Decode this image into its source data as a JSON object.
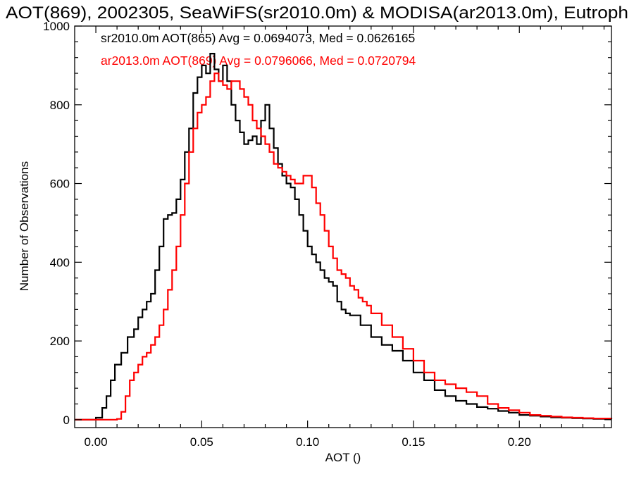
{
  "chart_data": {
    "type": "line",
    "title": "AOT(869), 2002305, SeaWiFS(sr2010.0m) & MODISA(ar2013.0m), Eutroph",
    "xlabel": "AOT ()",
    "ylabel": "Number of Observations",
    "xlim": [
      -0.01,
      0.2435
    ],
    "ylim": [
      -20,
      1000
    ],
    "grid": false,
    "x_ticks": [
      0.0,
      0.05,
      0.1,
      0.15,
      0.2
    ],
    "x_tick_labels": [
      "0.00",
      "0.05",
      "0.10",
      "0.15",
      "0.20"
    ],
    "y_ticks": [
      0,
      200,
      400,
      600,
      800,
      1000
    ],
    "y_tick_labels": [
      "0",
      "200",
      "400",
      "600",
      "800",
      "1000"
    ],
    "annotations": [
      {
        "text": "sr2010.0m AOT(865) Avg = 0.0694073, Med = 0.0626165",
        "color": "#000000"
      },
      {
        "text": "ar2013.0m AOT(869) Avg = 0.0796066, Med = 0.0720794",
        "color": "#ff0000"
      }
    ],
    "series": [
      {
        "name": "sr2010.0m AOT(865)",
        "color": "#000000",
        "step": "histogram",
        "points": [
          [
            -0.01,
            0
          ],
          [
            0.0,
            5
          ],
          [
            0.003,
            30
          ],
          [
            0.005,
            60
          ],
          [
            0.007,
            100
          ],
          [
            0.009,
            140
          ],
          [
            0.012,
            170
          ],
          [
            0.015,
            210
          ],
          [
            0.018,
            230
          ],
          [
            0.02,
            260
          ],
          [
            0.022,
            280
          ],
          [
            0.024,
            300
          ],
          [
            0.026,
            320
          ],
          [
            0.028,
            380
          ],
          [
            0.03,
            440
          ],
          [
            0.032,
            510
          ],
          [
            0.034,
            520
          ],
          [
            0.036,
            525
          ],
          [
            0.038,
            560
          ],
          [
            0.04,
            610
          ],
          [
            0.042,
            680
          ],
          [
            0.044,
            740
          ],
          [
            0.046,
            830
          ],
          [
            0.048,
            870
          ],
          [
            0.05,
            900
          ],
          [
            0.052,
            880
          ],
          [
            0.054,
            930
          ],
          [
            0.056,
            890
          ],
          [
            0.058,
            860
          ],
          [
            0.06,
            900
          ],
          [
            0.062,
            860
          ],
          [
            0.064,
            800
          ],
          [
            0.066,
            760
          ],
          [
            0.068,
            730
          ],
          [
            0.07,
            700
          ],
          [
            0.072,
            710
          ],
          [
            0.074,
            720
          ],
          [
            0.076,
            700
          ],
          [
            0.078,
            760
          ],
          [
            0.08,
            800
          ],
          [
            0.082,
            740
          ],
          [
            0.084,
            690
          ],
          [
            0.086,
            650
          ],
          [
            0.088,
            620
          ],
          [
            0.09,
            600
          ],
          [
            0.092,
            590
          ],
          [
            0.094,
            560
          ],
          [
            0.096,
            520
          ],
          [
            0.098,
            480
          ],
          [
            0.1,
            440
          ],
          [
            0.102,
            420
          ],
          [
            0.104,
            400
          ],
          [
            0.106,
            380
          ],
          [
            0.108,
            360
          ],
          [
            0.11,
            350
          ],
          [
            0.112,
            340
          ],
          [
            0.114,
            300
          ],
          [
            0.116,
            280
          ],
          [
            0.118,
            270
          ],
          [
            0.12,
            265
          ],
          [
            0.125,
            240
          ],
          [
            0.13,
            210
          ],
          [
            0.135,
            190
          ],
          [
            0.14,
            175
          ],
          [
            0.145,
            150
          ],
          [
            0.15,
            120
          ],
          [
            0.155,
            100
          ],
          [
            0.16,
            75
          ],
          [
            0.165,
            60
          ],
          [
            0.17,
            48
          ],
          [
            0.175,
            40
          ],
          [
            0.18,
            32
          ],
          [
            0.185,
            28
          ],
          [
            0.19,
            22
          ],
          [
            0.195,
            18
          ],
          [
            0.2,
            12
          ],
          [
            0.205,
            10
          ],
          [
            0.21,
            8
          ],
          [
            0.215,
            6
          ],
          [
            0.22,
            5
          ],
          [
            0.225,
            4
          ],
          [
            0.23,
            3
          ],
          [
            0.235,
            2
          ],
          [
            0.2435,
            2
          ]
        ]
      },
      {
        "name": "ar2013.0m AOT(869)",
        "color": "#ff0000",
        "step": "histogram",
        "points": [
          [
            -0.01,
            0
          ],
          [
            0.01,
            2
          ],
          [
            0.012,
            20
          ],
          [
            0.014,
            60
          ],
          [
            0.016,
            100
          ],
          [
            0.018,
            120
          ],
          [
            0.02,
            140
          ],
          [
            0.022,
            160
          ],
          [
            0.024,
            170
          ],
          [
            0.026,
            190
          ],
          [
            0.028,
            210
          ],
          [
            0.03,
            240
          ],
          [
            0.032,
            280
          ],
          [
            0.034,
            330
          ],
          [
            0.036,
            380
          ],
          [
            0.038,
            440
          ],
          [
            0.04,
            520
          ],
          [
            0.042,
            600
          ],
          [
            0.044,
            680
          ],
          [
            0.046,
            740
          ],
          [
            0.048,
            780
          ],
          [
            0.05,
            800
          ],
          [
            0.052,
            820
          ],
          [
            0.054,
            860
          ],
          [
            0.056,
            880
          ],
          [
            0.058,
            860
          ],
          [
            0.06,
            850
          ],
          [
            0.062,
            840
          ],
          [
            0.064,
            860
          ],
          [
            0.066,
            860
          ],
          [
            0.068,
            840
          ],
          [
            0.07,
            820
          ],
          [
            0.072,
            800
          ],
          [
            0.074,
            760
          ],
          [
            0.076,
            740
          ],
          [
            0.078,
            720
          ],
          [
            0.08,
            700
          ],
          [
            0.082,
            680
          ],
          [
            0.084,
            650
          ],
          [
            0.086,
            640
          ],
          [
            0.088,
            630
          ],
          [
            0.09,
            620
          ],
          [
            0.092,
            610
          ],
          [
            0.094,
            600
          ],
          [
            0.096,
            600
          ],
          [
            0.098,
            620
          ],
          [
            0.1,
            620
          ],
          [
            0.102,
            590
          ],
          [
            0.104,
            550
          ],
          [
            0.106,
            520
          ],
          [
            0.108,
            480
          ],
          [
            0.11,
            440
          ],
          [
            0.112,
            410
          ],
          [
            0.114,
            380
          ],
          [
            0.116,
            370
          ],
          [
            0.118,
            360
          ],
          [
            0.12,
            340
          ],
          [
            0.122,
            330
          ],
          [
            0.124,
            310
          ],
          [
            0.126,
            300
          ],
          [
            0.128,
            290
          ],
          [
            0.13,
            270
          ],
          [
            0.135,
            240
          ],
          [
            0.14,
            210
          ],
          [
            0.145,
            180
          ],
          [
            0.15,
            150
          ],
          [
            0.155,
            120
          ],
          [
            0.16,
            100
          ],
          [
            0.165,
            90
          ],
          [
            0.17,
            80
          ],
          [
            0.175,
            70
          ],
          [
            0.18,
            60
          ],
          [
            0.185,
            40
          ],
          [
            0.19,
            30
          ],
          [
            0.195,
            24
          ],
          [
            0.2,
            18
          ],
          [
            0.205,
            12
          ],
          [
            0.21,
            10
          ],
          [
            0.215,
            8
          ],
          [
            0.22,
            6
          ],
          [
            0.225,
            5
          ],
          [
            0.23,
            4
          ],
          [
            0.235,
            3
          ],
          [
            0.2435,
            2
          ]
        ]
      }
    ]
  }
}
